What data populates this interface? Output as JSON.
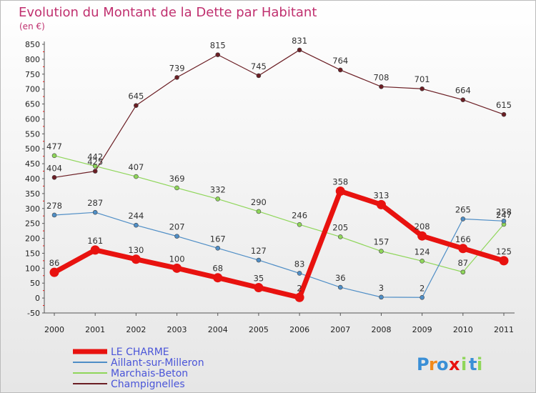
{
  "chart_data": {
    "type": "line",
    "title": "Evolution du Montant de la Dette par Habitant",
    "subtitle": "(en €)",
    "categories": [
      "2000",
      "2001",
      "2002",
      "2003",
      "2004",
      "2005",
      "2006",
      "2007",
      "2008",
      "2009",
      "2010",
      "2011"
    ],
    "ylim": [
      -50,
      850
    ],
    "yticks": [
      -50,
      0,
      50,
      100,
      150,
      200,
      250,
      300,
      350,
      400,
      450,
      500,
      550,
      600,
      650,
      700,
      750,
      800,
      850
    ],
    "grid": false,
    "legend_position": "bottom-left",
    "series": [
      {
        "name": "LE CHARME",
        "color": "#e8120f",
        "values": [
          86,
          161,
          130,
          100,
          68,
          35,
          2,
          358,
          313,
          208,
          166,
          125
        ]
      },
      {
        "name": "Aillant-sur-Milleron",
        "color": "#4f8ec6",
        "values": [
          278,
          287,
          244,
          207,
          167,
          127,
          83,
          36,
          3,
          2,
          265,
          258
        ]
      },
      {
        "name": "Marchais-Beton",
        "color": "#8fd65a",
        "values": [
          477,
          442,
          407,
          369,
          332,
          290,
          246,
          205,
          157,
          124,
          87,
          247
        ]
      },
      {
        "name": "Champignelles",
        "color": "#6b1e24",
        "values": [
          404,
          425,
          645,
          739,
          815,
          745,
          831,
          764,
          708,
          701,
          664,
          615
        ]
      }
    ],
    "data_labels": [
      {
        "text": "86",
        "x": "2000",
        "y": 86
      },
      {
        "text": "161",
        "x": "2001",
        "y": 161
      },
      {
        "text": "130",
        "x": "2002",
        "y": 130
      },
      {
        "text": "100",
        "x": "2003",
        "y": 100
      },
      {
        "text": "68",
        "x": "2004",
        "y": 68
      },
      {
        "text": "35",
        "x": "2005",
        "y": 35
      },
      {
        "text": "2",
        "x": "2006",
        "y": 2
      },
      {
        "text": "358",
        "x": "2007",
        "y": 358
      },
      {
        "text": "313",
        "x": "2008",
        "y": 313
      },
      {
        "text": "208",
        "x": "2009",
        "y": 208
      },
      {
        "text": "166",
        "x": "2010",
        "y": 166
      },
      {
        "text": "125",
        "x": "2011",
        "y": 125
      },
      {
        "text": "278",
        "x": "2000",
        "y": 278
      },
      {
        "text": "287",
        "x": "2001",
        "y": 287
      },
      {
        "text": "244",
        "x": "2002",
        "y": 244
      },
      {
        "text": "207",
        "x": "2003",
        "y": 207
      },
      {
        "text": "167",
        "x": "2004",
        "y": 167
      },
      {
        "text": "127",
        "x": "2005",
        "y": 127
      },
      {
        "text": "83",
        "x": "2006",
        "y": 83
      },
      {
        "text": "36",
        "x": "2007",
        "y": 36
      },
      {
        "text": "3",
        "x": "2008",
        "y": 3
      },
      {
        "text": "2",
        "x": "2009",
        "y": 2
      },
      {
        "text": "265",
        "x": "2010",
        "y": 265
      },
      {
        "text": "258",
        "x": "2011",
        "y": 258
      },
      {
        "text": "477",
        "x": "2000",
        "y": 477
      },
      {
        "text": "442",
        "x": "2001",
        "y": 442
      },
      {
        "text": "407",
        "x": "2002",
        "y": 407
      },
      {
        "text": "369",
        "x": "2003",
        "y": 369
      },
      {
        "text": "332",
        "x": "2004",
        "y": 332
      },
      {
        "text": "290",
        "x": "2005",
        "y": 290
      },
      {
        "text": "246",
        "x": "2006",
        "y": 246
      },
      {
        "text": "205",
        "x": "2007",
        "y": 205
      },
      {
        "text": "157",
        "x": "2008",
        "y": 157
      },
      {
        "text": "124",
        "x": "2009",
        "y": 124
      },
      {
        "text": "87",
        "x": "2010",
        "y": 87
      },
      {
        "text": "247",
        "x": "2011",
        "y": 247
      },
      {
        "text": "404",
        "x": "2000",
        "y": 404
      },
      {
        "text": "425",
        "x": "2001",
        "y": 425
      },
      {
        "text": "645",
        "x": "2002",
        "y": 645
      },
      {
        "text": "739",
        "x": "2003",
        "y": 739
      },
      {
        "text": "815",
        "x": "2004",
        "y": 815
      },
      {
        "text": "745",
        "x": "2005",
        "y": 745
      },
      {
        "text": "831",
        "x": "2006",
        "y": 831
      },
      {
        "text": "764",
        "x": "2007",
        "y": 764
      },
      {
        "text": "708",
        "x": "2008",
        "y": 708
      },
      {
        "text": "701",
        "x": "2009",
        "y": 701
      },
      {
        "text": "664",
        "x": "2010",
        "y": 664
      },
      {
        "text": "615",
        "x": "2011",
        "y": 615
      }
    ]
  },
  "logo": {
    "text": "Proxiti",
    "letters": [
      "P",
      "r",
      "o",
      "x",
      "i",
      "t",
      "i"
    ],
    "colors": [
      "#3a8fd6",
      "#f28a1a",
      "#3a8fd6",
      "#e8120f",
      "#8fd65a",
      "#3a8fd6",
      "#8fd65a"
    ]
  },
  "colors": {
    "background_top": "#ffffff",
    "background_bottom": "#e6e6e6",
    "title": "#c0306f",
    "axis": "#555555",
    "tick_label": "#222222",
    "legend_text": "#4a55d8"
  }
}
